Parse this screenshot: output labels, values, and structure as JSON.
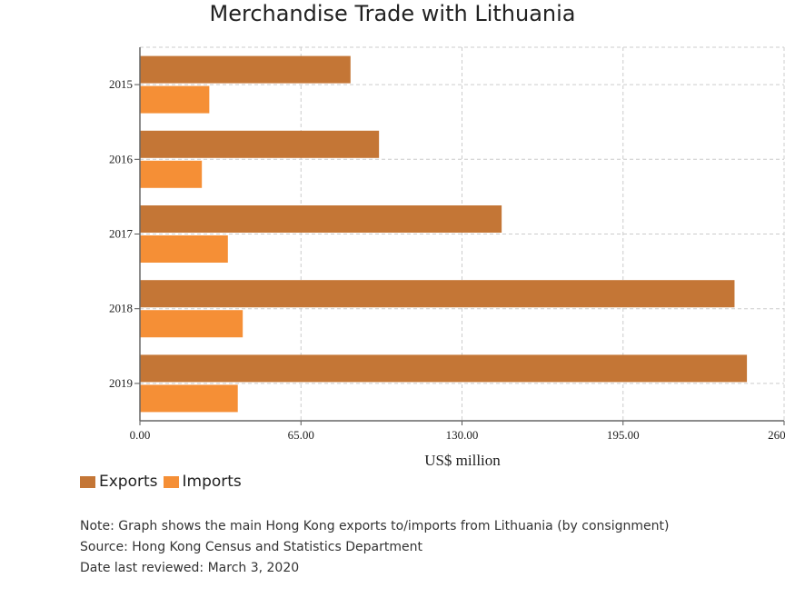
{
  "chart_data": {
    "type": "bar",
    "orientation": "horizontal",
    "title": "Merchandise Trade with Lithuania",
    "xlabel": "US$ million",
    "ylabel": "",
    "categories": [
      "2015",
      "2016",
      "2017",
      "2018",
      "2019"
    ],
    "series": [
      {
        "name": "Exports",
        "color": "#c47636",
        "values": [
          85,
          96.5,
          146,
          240,
          245
        ]
      },
      {
        "name": "Imports",
        "color": "#f58f36",
        "values": [
          28,
          25,
          35.5,
          41.5,
          39.5
        ]
      }
    ],
    "xlim": [
      0,
      260
    ],
    "xticks": [
      "0.00",
      "65.00",
      "130.00",
      "195.00",
      "260.00"
    ],
    "grid": true,
    "legend_position": "bottom-left"
  },
  "legend": {
    "exports_label": "Exports",
    "imports_label": "Imports"
  },
  "notes": {
    "note": "Note: Graph shows the main Hong Kong exports to/imports from Lithuania (by consignment)",
    "source": "Source: Hong Kong Census and Statistics Department",
    "reviewed": "Date last reviewed: March 3, 2020"
  }
}
